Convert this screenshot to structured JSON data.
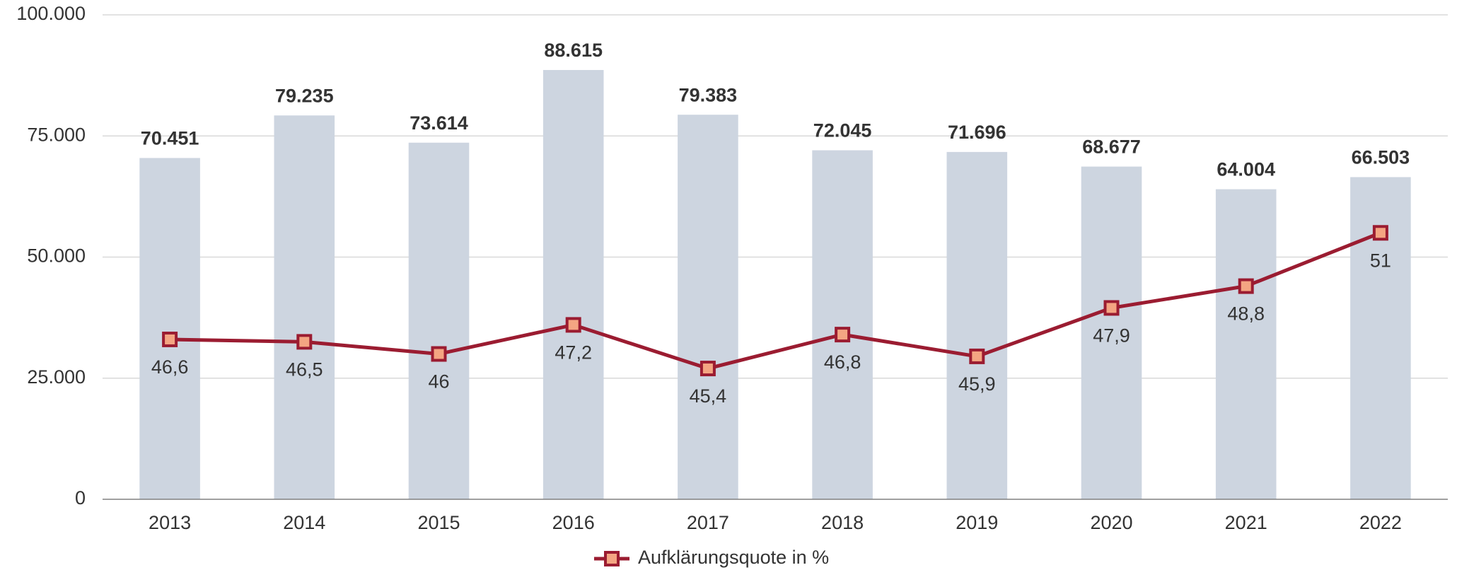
{
  "chart_data": {
    "type": "bar",
    "categories": [
      "2013",
      "2014",
      "2015",
      "2016",
      "2017",
      "2018",
      "2019",
      "2020",
      "2021",
      "2022"
    ],
    "series": [
      {
        "type": "bar",
        "color": "#cdd5e0",
        "values": [
          70451,
          79235,
          73614,
          88615,
          79383,
          72045,
          71696,
          68677,
          64004,
          66503
        ],
        "value_labels": [
          "70.451",
          "79.235",
          "73.614",
          "88.615",
          "79.383",
          "72.045",
          "71.696",
          "68.677",
          "64.004",
          "66.503"
        ]
      },
      {
        "type": "line",
        "name": "Aufklärungsquote in %",
        "color": "#9b1c31",
        "marker_color": "#f4a582",
        "axis": "y2",
        "values": [
          46.6,
          46.5,
          46,
          47.2,
          45.4,
          46.8,
          45.9,
          47.9,
          48.8,
          51
        ],
        "value_labels": [
          "46,6",
          "46,5",
          "46",
          "47,2",
          "45,4",
          "46,8",
          "45,9",
          "47,9",
          "48,8",
          "51"
        ]
      }
    ],
    "ylim": [
      0,
      100000
    ],
    "yticks": [
      0,
      {
        "value": 25000,
        "label": "25.000"
      },
      {
        "value": 50000,
        "label": "50.000"
      },
      {
        "value": 75000,
        "label": "75.000"
      },
      {
        "value": 100000,
        "label": "100.000"
      }
    ],
    "y2lim": [
      40,
      60
    ],
    "grid": true,
    "legend": "bottom"
  }
}
